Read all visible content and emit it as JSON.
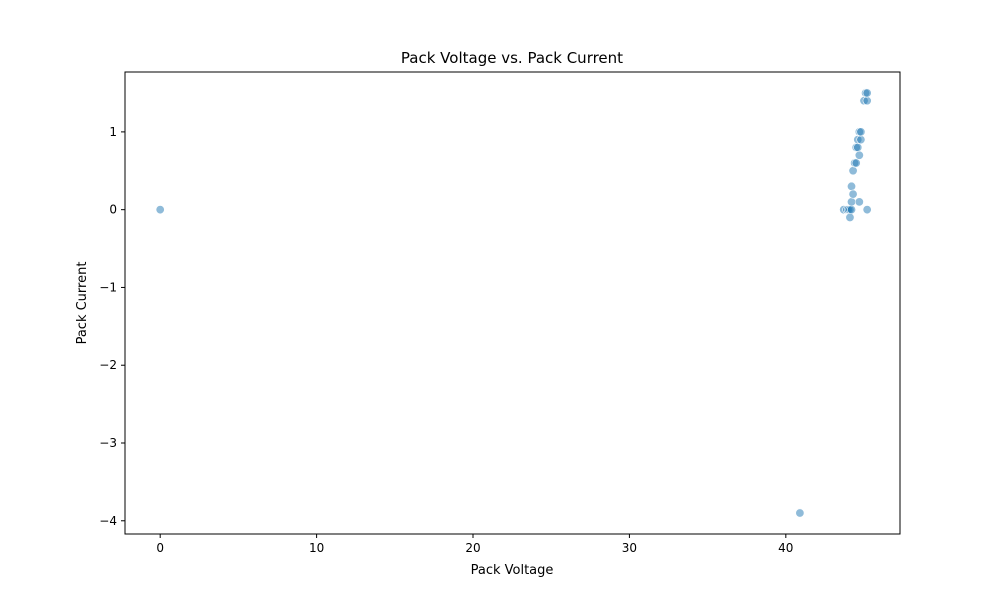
{
  "chart_data": {
    "type": "scatter",
    "title": "Pack Voltage vs. Pack Current",
    "xlabel": "Pack Voltage",
    "ylabel": "Pack Current",
    "xlim": [
      -2.25,
      47.3
    ],
    "ylim": [
      -4.17,
      1.77
    ],
    "xticks": [
      0,
      10,
      20,
      30,
      40
    ],
    "yticks": [
      1,
      0,
      -1,
      -2,
      -3,
      -4
    ],
    "xtick_labels": [
      "0",
      "10",
      "20",
      "30",
      "40"
    ],
    "ytick_labels": [
      "1",
      "0",
      "−1",
      "−2",
      "−3",
      "−4"
    ],
    "grid": false,
    "marker_color": "#1f77b4",
    "series": [
      {
        "points": [
          {
            "x": 0.0,
            "y": 0.0
          },
          {
            "x": 40.9,
            "y": -3.9
          },
          {
            "x": 43.7,
            "y": 0.0
          },
          {
            "x": 43.9,
            "y": 0.0
          },
          {
            "x": 44.0,
            "y": 0.0
          },
          {
            "x": 44.1,
            "y": 0.0
          },
          {
            "x": 44.2,
            "y": 0.0
          },
          {
            "x": 44.1,
            "y": -0.1
          },
          {
            "x": 44.2,
            "y": 0.1
          },
          {
            "x": 44.2,
            "y": 0.3
          },
          {
            "x": 44.3,
            "y": 0.2
          },
          {
            "x": 44.3,
            "y": 0.5
          },
          {
            "x": 44.4,
            "y": 0.6
          },
          {
            "x": 44.5,
            "y": 0.6
          },
          {
            "x": 44.5,
            "y": 0.8
          },
          {
            "x": 44.6,
            "y": 0.8
          },
          {
            "x": 44.7,
            "y": 0.7
          },
          {
            "x": 44.6,
            "y": 0.9
          },
          {
            "x": 44.8,
            "y": 0.9
          },
          {
            "x": 44.7,
            "y": 1.0
          },
          {
            "x": 44.8,
            "y": 1.0
          },
          {
            "x": 44.7,
            "y": 0.1
          },
          {
            "x": 45.2,
            "y": 0.0
          },
          {
            "x": 45.0,
            "y": 1.4
          },
          {
            "x": 45.2,
            "y": 1.4
          },
          {
            "x": 45.1,
            "y": 1.5
          },
          {
            "x": 45.2,
            "y": 1.5
          }
        ]
      }
    ]
  }
}
